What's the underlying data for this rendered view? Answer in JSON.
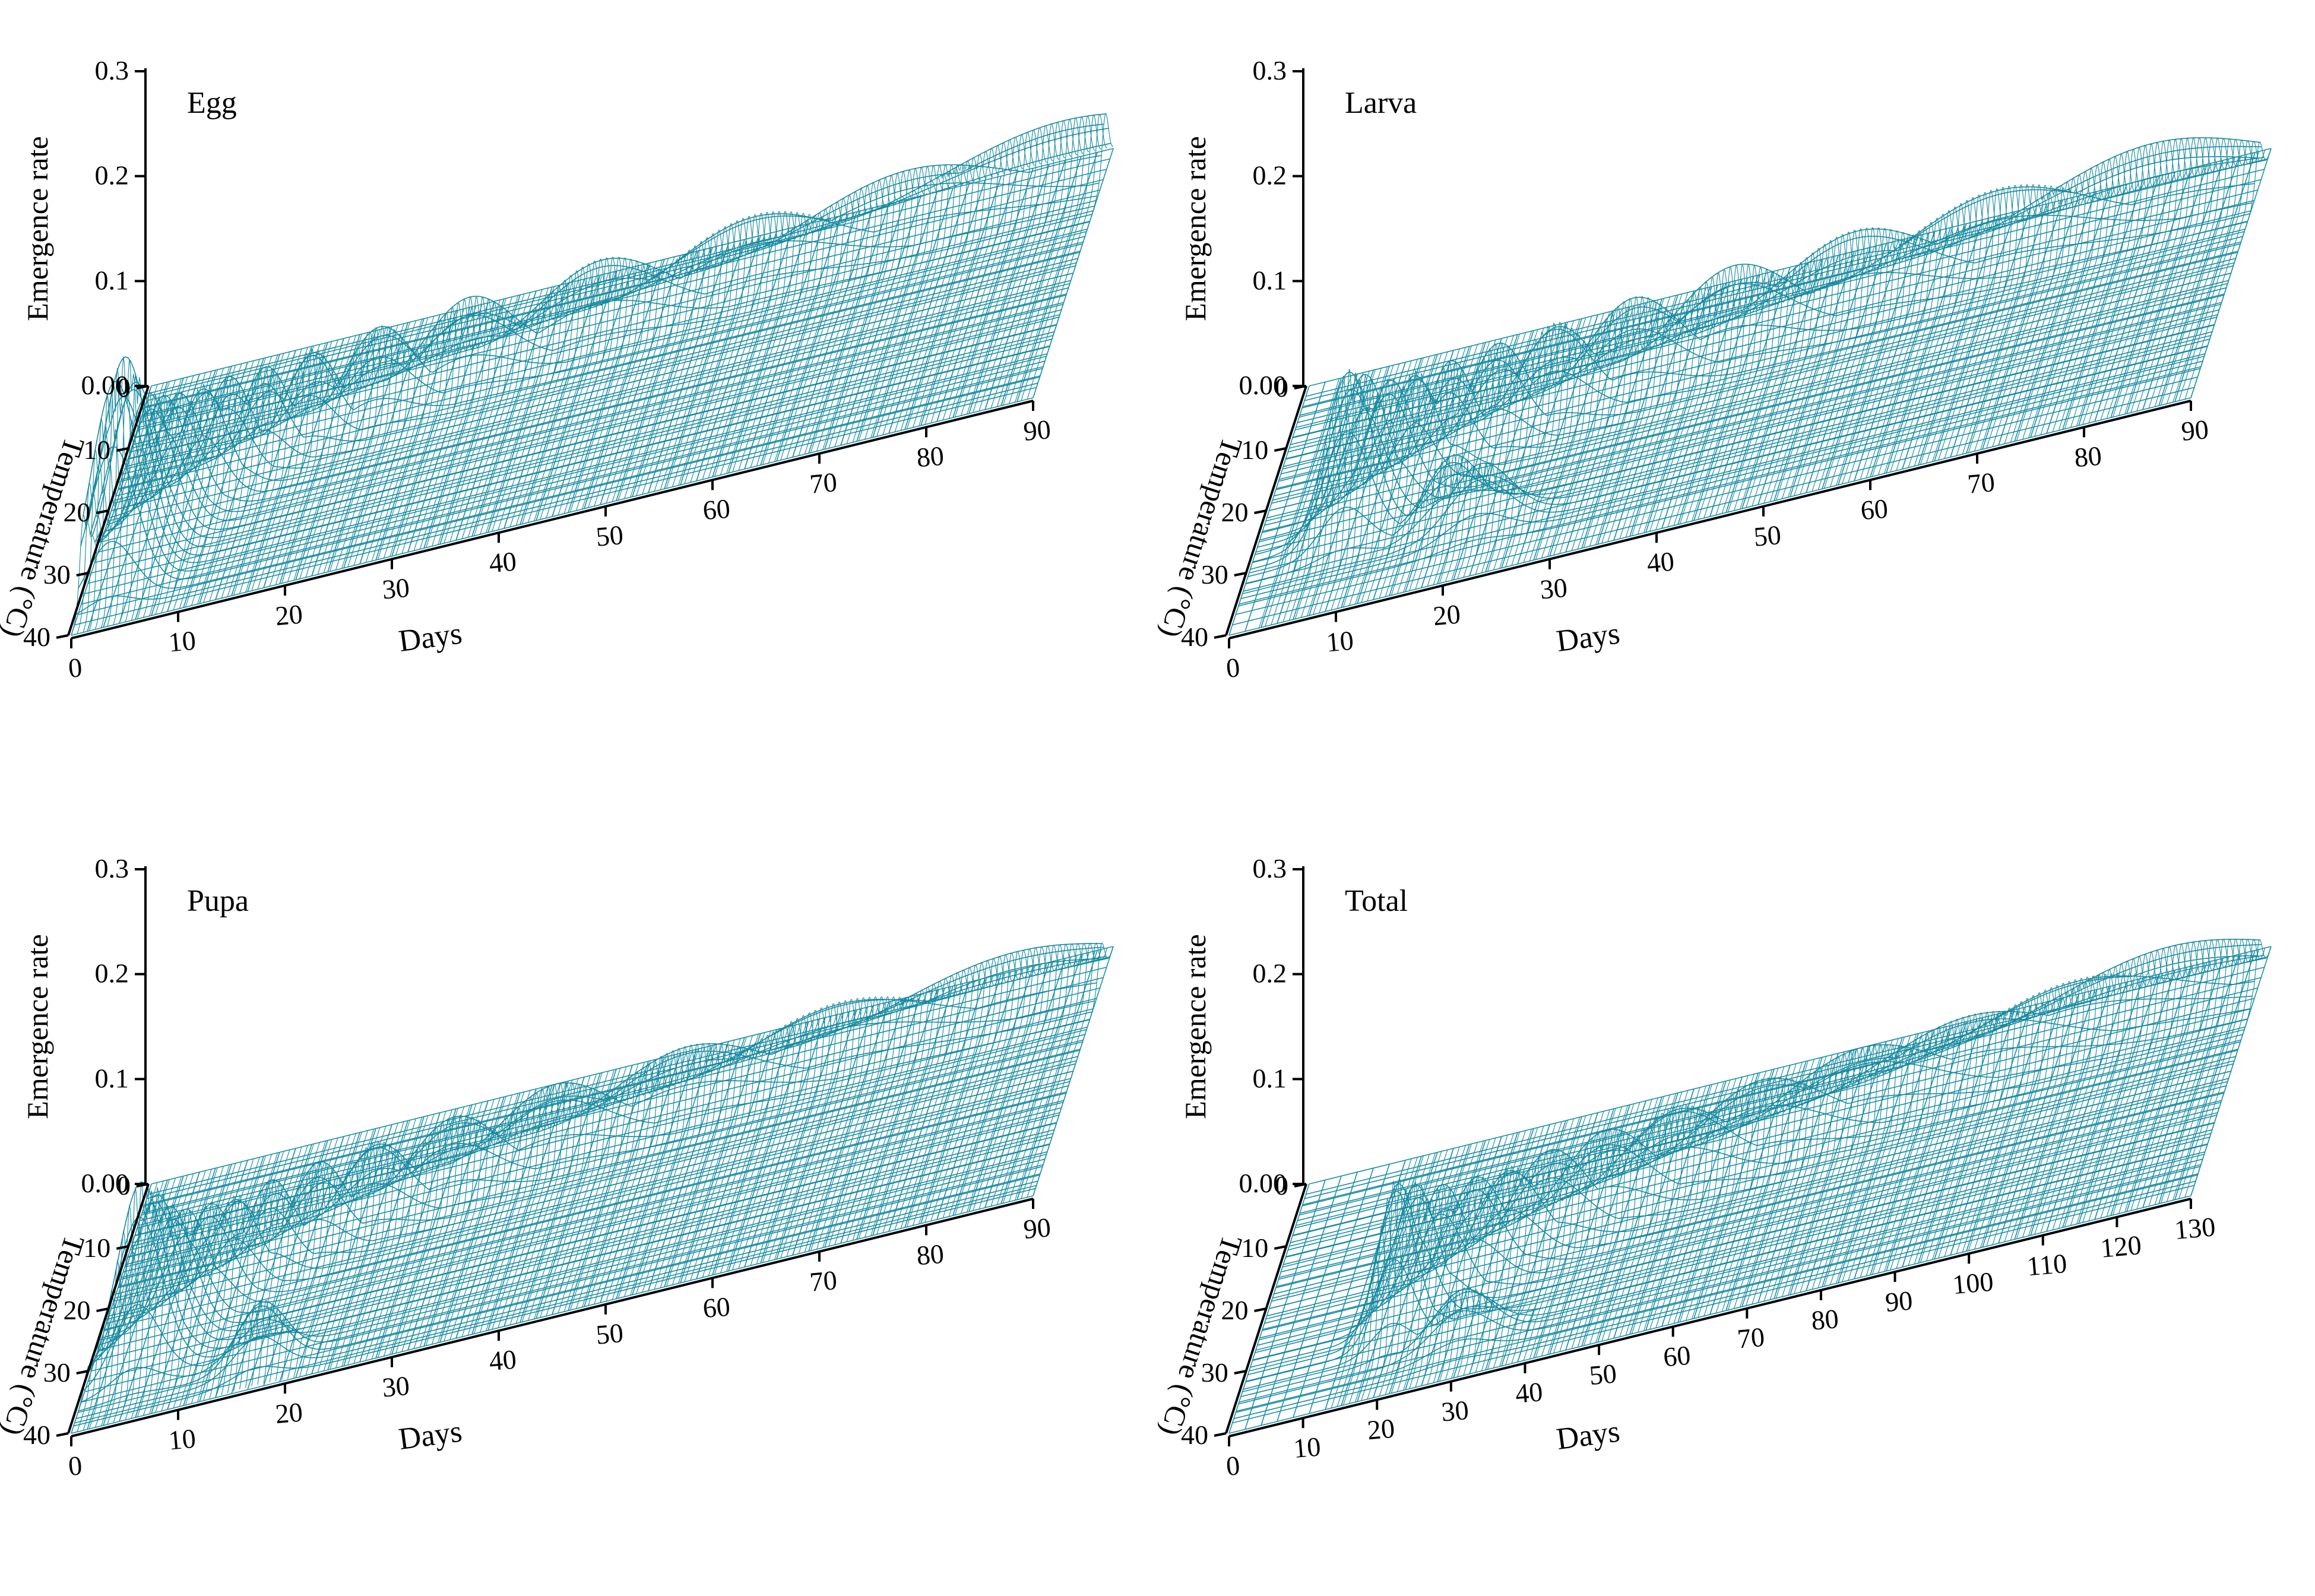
{
  "figure": {
    "colors": {
      "mesh": "#1A8FA6",
      "peak": "#16899F",
      "axis": "#000000",
      "background": "#FFFFFF"
    }
  },
  "chart_data": [
    {
      "type": "surface",
      "label": "Egg",
      "zlabel": "Emergence rate",
      "xlabel": "Days",
      "ylabel": "Temperature (°C)",
      "xlim": [
        0,
        90
      ],
      "ylim": [
        0,
        40
      ],
      "zlim": [
        0,
        0.3
      ],
      "xticks": [
        "0",
        "10",
        "20",
        "30",
        "40",
        "50",
        "60",
        "70",
        "80",
        "90"
      ],
      "yticks": [
        "0",
        "10",
        "20",
        "30",
        "40"
      ],
      "zticks": [
        "0.00",
        "0.1",
        "0.2",
        "0.3"
      ],
      "peak_ridge": [
        {
          "temperature": 34,
          "day": 3,
          "rate": 0.2
        },
        {
          "temperature": 32,
          "day": 3.5,
          "rate": 0.21
        },
        {
          "temperature": 30,
          "day": 4,
          "rate": 0.18
        },
        {
          "temperature": 28,
          "day": 5,
          "rate": 0.15
        },
        {
          "temperature": 26,
          "day": 6,
          "rate": 0.13
        },
        {
          "temperature": 24,
          "day": 7,
          "rate": 0.12
        },
        {
          "temperature": 22,
          "day": 9,
          "rate": 0.11
        },
        {
          "temperature": 20,
          "day": 11,
          "rate": 0.1
        },
        {
          "temperature": 18,
          "day": 14,
          "rate": 0.09
        },
        {
          "temperature": 16,
          "day": 18,
          "rate": 0.085
        },
        {
          "temperature": 14,
          "day": 24,
          "rate": 0.08
        },
        {
          "temperature": 12,
          "day": 32,
          "rate": 0.075
        },
        {
          "temperature": 10,
          "day": 44,
          "rate": 0.07
        },
        {
          "temperature": 8,
          "day": 58,
          "rate": 0.065
        },
        {
          "temperature": 6,
          "day": 72,
          "rate": 0.06
        },
        {
          "temperature": 4,
          "day": 86,
          "rate": 0.06
        }
      ]
    },
    {
      "type": "surface",
      "label": "Larva",
      "zlabel": "Emergence rate",
      "xlabel": "Days",
      "ylabel": "Temperature (°C)",
      "xlim": [
        0,
        90
      ],
      "ylim": [
        0,
        40
      ],
      "zlim": [
        0,
        0.3
      ],
      "xticks": [
        "0",
        "10",
        "20",
        "30",
        "40",
        "50",
        "60",
        "70",
        "80",
        "90"
      ],
      "yticks": [
        "0",
        "10",
        "20",
        "30",
        "40"
      ],
      "zticks": [
        "0.00",
        "0.1",
        "0.2",
        "0.3"
      ],
      "peak_ridge": [
        {
          "temperature": 28,
          "day": 9,
          "rate": 0.16
        },
        {
          "temperature": 26,
          "day": 10,
          "rate": 0.14
        },
        {
          "temperature": 24,
          "day": 12,
          "rate": 0.12
        },
        {
          "temperature": 22,
          "day": 14,
          "rate": 0.11
        },
        {
          "temperature": 20,
          "day": 17,
          "rate": 0.1
        },
        {
          "temperature": 18,
          "day": 21,
          "rate": 0.095
        },
        {
          "temperature": 16,
          "day": 26,
          "rate": 0.09
        },
        {
          "temperature": 14,
          "day": 33,
          "rate": 0.085
        },
        {
          "temperature": 12,
          "day": 42,
          "rate": 0.08
        },
        {
          "temperature": 10,
          "day": 53,
          "rate": 0.075
        },
        {
          "temperature": 8,
          "day": 66,
          "rate": 0.07
        },
        {
          "temperature": 6,
          "day": 80,
          "rate": 0.065
        },
        {
          "temperature": 30,
          "day": 19,
          "rate": 0.065
        },
        {
          "temperature": 32,
          "day": 22,
          "rate": 0.06
        }
      ]
    },
    {
      "type": "surface",
      "label": "Pupa",
      "zlabel": "Emergence rate",
      "xlabel": "Days",
      "ylabel": "Temperature (°C)",
      "xlim": [
        0,
        90
      ],
      "ylim": [
        0,
        40
      ],
      "zlim": [
        0,
        0.3
      ],
      "xticks": [
        "0",
        "10",
        "20",
        "30",
        "40",
        "50",
        "60",
        "70",
        "80",
        "90"
      ],
      "yticks": [
        "0",
        "10",
        "20",
        "30",
        "40"
      ],
      "zticks": [
        "0.00",
        "0.1",
        "0.2",
        "0.3"
      ],
      "peak_ridge": [
        {
          "temperature": 32,
          "day": 5,
          "rate": 0.18
        },
        {
          "temperature": 30,
          "day": 6,
          "rate": 0.16
        },
        {
          "temperature": 28,
          "day": 7,
          "rate": 0.13
        },
        {
          "temperature": 26,
          "day": 8,
          "rate": 0.11
        },
        {
          "temperature": 24,
          "day": 10,
          "rate": 0.1
        },
        {
          "temperature": 22,
          "day": 12,
          "rate": 0.09
        },
        {
          "temperature": 20,
          "day": 15,
          "rate": 0.085
        },
        {
          "temperature": 18,
          "day": 19,
          "rate": 0.08
        },
        {
          "temperature": 16,
          "day": 24,
          "rate": 0.075
        },
        {
          "temperature": 14,
          "day": 31,
          "rate": 0.07
        },
        {
          "temperature": 12,
          "day": 40,
          "rate": 0.065
        },
        {
          "temperature": 10,
          "day": 52,
          "rate": 0.06
        },
        {
          "temperature": 8,
          "day": 66,
          "rate": 0.055
        },
        {
          "temperature": 6,
          "day": 82,
          "rate": 0.05
        },
        {
          "temperature": 36,
          "day": 17,
          "rate": 0.06
        }
      ]
    },
    {
      "type": "surface",
      "label": "Total",
      "zlabel": "Emergence rate",
      "xlabel": "Days",
      "ylabel": "Temperature (°C)",
      "xlim": [
        0,
        130
      ],
      "ylim": [
        0,
        40
      ],
      "zlim": [
        0,
        0.3
      ],
      "xticks": [
        "0",
        "10",
        "20",
        "30",
        "40",
        "50",
        "60",
        "70",
        "80",
        "90",
        "100",
        "110",
        "120",
        "130"
      ],
      "yticks": [
        "0",
        "10",
        "20",
        "30",
        "40"
      ],
      "zticks": [
        "0.00",
        "0.1",
        "0.2",
        "0.3"
      ],
      "peak_ridge": [
        {
          "temperature": 30,
          "day": 20,
          "rate": 0.15
        },
        {
          "temperature": 28,
          "day": 22,
          "rate": 0.13
        },
        {
          "temperature": 26,
          "day": 25,
          "rate": 0.11
        },
        {
          "temperature": 24,
          "day": 29,
          "rate": 0.1
        },
        {
          "temperature": 22,
          "day": 33,
          "rate": 0.09
        },
        {
          "temperature": 20,
          "day": 38,
          "rate": 0.085
        },
        {
          "temperature": 18,
          "day": 45,
          "rate": 0.08
        },
        {
          "temperature": 16,
          "day": 54,
          "rate": 0.075
        },
        {
          "temperature": 14,
          "day": 65,
          "rate": 0.07
        },
        {
          "temperature": 12,
          "day": 78,
          "rate": 0.065
        },
        {
          "temperature": 10,
          "day": 92,
          "rate": 0.06
        },
        {
          "temperature": 8,
          "day": 106,
          "rate": 0.058
        },
        {
          "temperature": 6,
          "day": 118,
          "rate": 0.056
        },
        {
          "temperature": 34,
          "day": 30,
          "rate": 0.05
        }
      ]
    }
  ]
}
